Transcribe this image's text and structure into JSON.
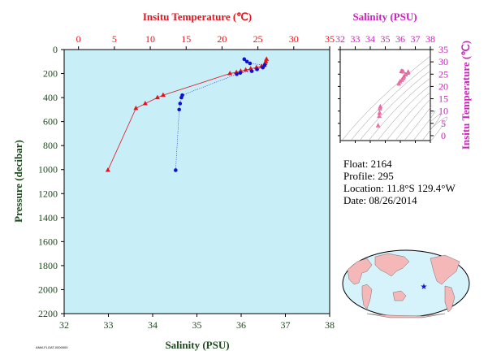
{
  "colors": {
    "temp": "#e0141e",
    "salinity": "#1010d0",
    "magenta": "#cc22bb",
    "axis_dark": "#1e4a1e",
    "plot_bg": "#c8eef8"
  },
  "info": {
    "float": "Float:  2164",
    "profile": "Profile:  295",
    "location": "Location:  11.8°S  129.4°W",
    "date": "Date:  08/26/2014"
  },
  "tiny_label": "ANM-FLOAT-0000000",
  "chart_data": [
    {
      "type": "line",
      "top_axis": {
        "label": "Insitu Temperature (℃)",
        "range": [
          -2,
          35
        ],
        "ticks": [
          0,
          5,
          10,
          15,
          20,
          25,
          30,
          35
        ]
      },
      "bottom_axis": {
        "label": "Salinity (PSU)",
        "range": [
          32,
          38
        ],
        "ticks": [
          32,
          33,
          34,
          35,
          36,
          37,
          38
        ]
      },
      "y_axis": {
        "label": "Pressure (decibar)",
        "range": [
          0,
          2200
        ],
        "reversed": true,
        "ticks": [
          0,
          200,
          400,
          600,
          800,
          1000,
          1200,
          1400,
          1600,
          1800,
          2000,
          2200
        ]
      },
      "series": [
        {
          "name": "Insitu Temperature",
          "marker": "triangle",
          "points": [
            {
              "value": 26.2,
              "pressure": 80
            },
            {
              "value": 26.1,
              "pressure": 100
            },
            {
              "value": 26.0,
              "pressure": 115
            },
            {
              "value": 25.9,
              "pressure": 130
            },
            {
              "value": 25.5,
              "pressure": 140
            },
            {
              "value": 24.8,
              "pressure": 150
            },
            {
              "value": 24.0,
              "pressure": 160
            },
            {
              "value": 23.3,
              "pressure": 170
            },
            {
              "value": 22.6,
              "pressure": 180
            },
            {
              "value": 22.0,
              "pressure": 190
            },
            {
              "value": 21.1,
              "pressure": 200
            },
            {
              "value": 11.8,
              "pressure": 380
            },
            {
              "value": 11.0,
              "pressure": 400
            },
            {
              "value": 9.3,
              "pressure": 450
            },
            {
              "value": 8.0,
              "pressure": 490
            },
            {
              "value": 4.1,
              "pressure": 1005
            }
          ]
        },
        {
          "name": "Salinity",
          "marker": "dot",
          "points": [
            {
              "value": 36.07,
              "pressure": 80
            },
            {
              "value": 36.13,
              "pressure": 100
            },
            {
              "value": 36.2,
              "pressure": 115
            },
            {
              "value": 36.53,
              "pressure": 130
            },
            {
              "value": 36.49,
              "pressure": 150
            },
            {
              "value": 36.36,
              "pressure": 165
            },
            {
              "value": 36.24,
              "pressure": 180
            },
            {
              "value": 35.98,
              "pressure": 195
            },
            {
              "value": 35.9,
              "pressure": 205
            },
            {
              "value": 34.67,
              "pressure": 380
            },
            {
              "value": 34.65,
              "pressure": 400
            },
            {
              "value": 34.62,
              "pressure": 450
            },
            {
              "value": 34.6,
              "pressure": 500
            },
            {
              "value": 34.52,
              "pressure": 1005
            }
          ]
        }
      ]
    },
    {
      "type": "scatter",
      "title": "Salinity (PSU)",
      "x_axis": {
        "range": [
          32,
          38
        ],
        "ticks": [
          32,
          33,
          34,
          35,
          36,
          37,
          38
        ]
      },
      "y_axis": {
        "label": "Insitu Temperature (℃)",
        "range": [
          -2,
          35
        ],
        "ticks": [
          0,
          5,
          10,
          15,
          20,
          25,
          30,
          35
        ]
      },
      "points": [
        {
          "s": 36.07,
          "t": 26.2
        },
        {
          "s": 36.13,
          "t": 26.1
        },
        {
          "s": 36.2,
          "t": 26.0
        },
        {
          "s": 36.53,
          "t": 25.9
        },
        {
          "s": 36.49,
          "t": 25.5
        },
        {
          "s": 36.36,
          "t": 24.8
        },
        {
          "s": 36.24,
          "t": 24.0
        },
        {
          "s": 36.2,
          "t": 23.3
        },
        {
          "s": 36.1,
          "t": 22.6
        },
        {
          "s": 35.98,
          "t": 22.0
        },
        {
          "s": 35.9,
          "t": 21.1
        },
        {
          "s": 34.67,
          "t": 11.8
        },
        {
          "s": 34.65,
          "t": 11.0
        },
        {
          "s": 34.62,
          "t": 9.3
        },
        {
          "s": 34.6,
          "t": 8.0
        },
        {
          "s": 34.52,
          "t": 4.1
        }
      ]
    }
  ],
  "map": {
    "marker": "★"
  }
}
